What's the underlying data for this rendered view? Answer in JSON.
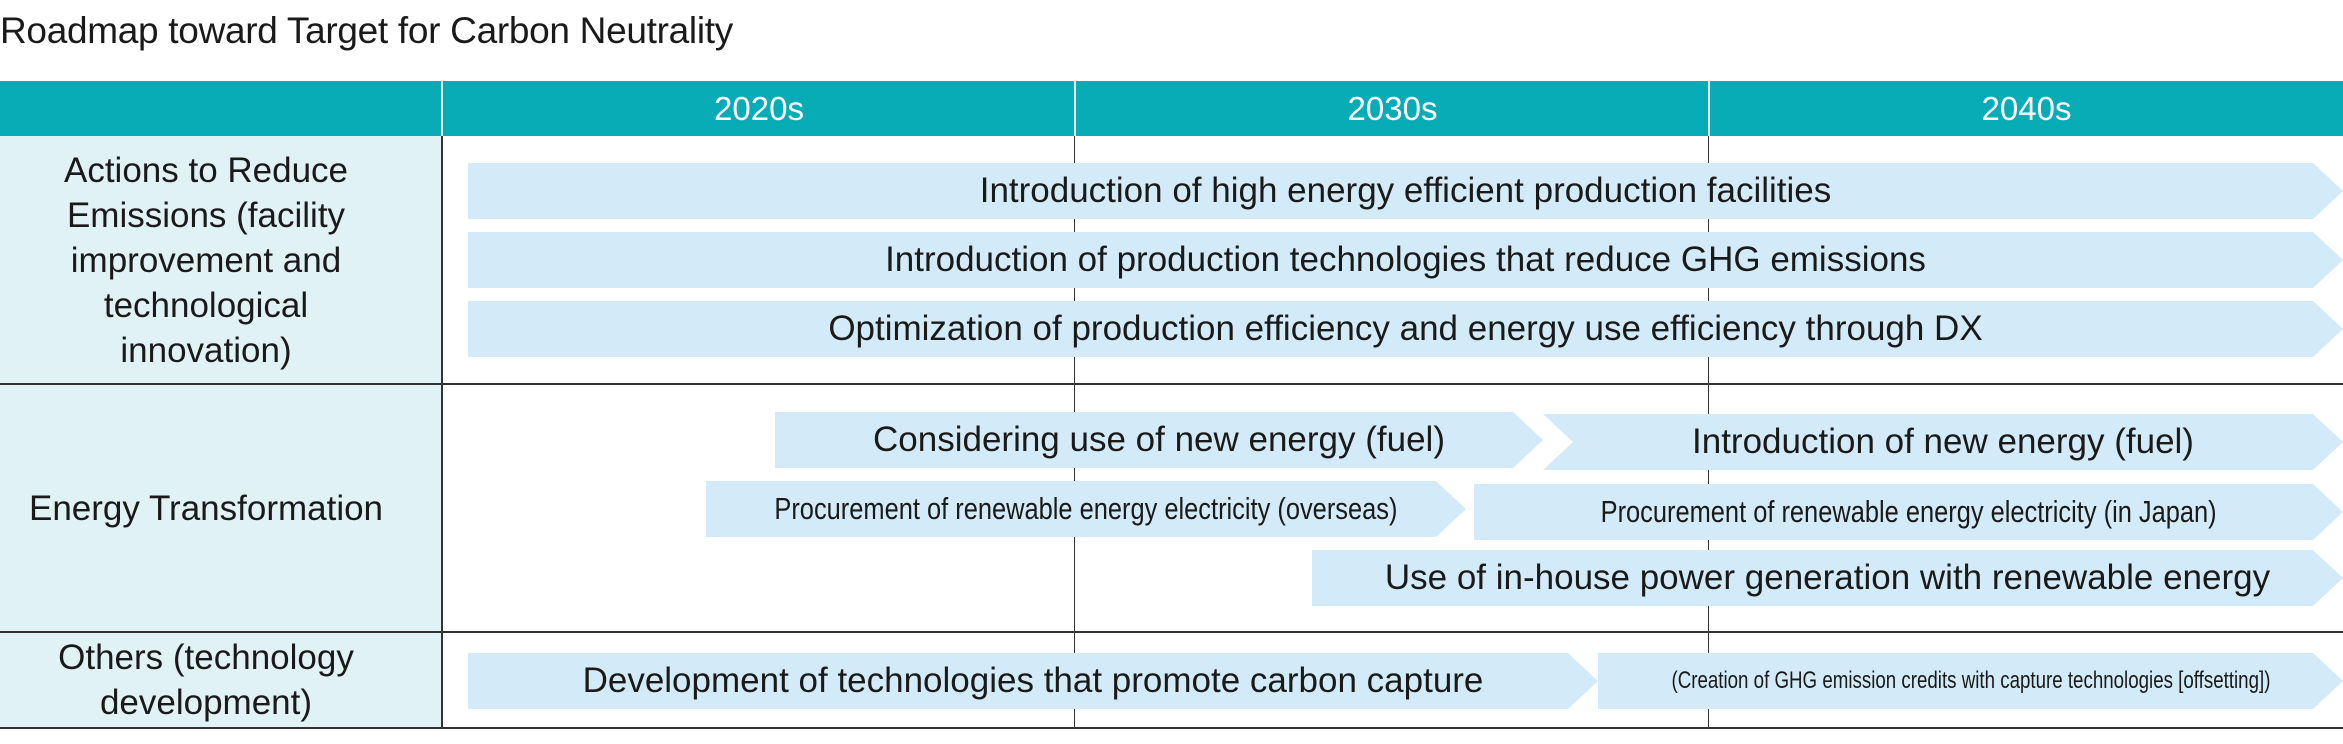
{
  "title": "Roadmap toward Target for Carbon Neutrality",
  "header": {
    "decades": [
      "2020s",
      "2030s",
      "2040s"
    ]
  },
  "rows": {
    "reduce": {
      "label": "Actions to Reduce Emissions (facility improvement and technological innovation)",
      "bars": [
        "Introduction of high energy efficient production facilities",
        "Introduction of production technologies that reduce GHG emissions",
        "Optimization of production efficiency and energy use efficiency through DX"
      ]
    },
    "energy": {
      "label": "Energy Transformation",
      "bars": [
        "Considering use of new energy (fuel)",
        "Introduction of new energy (fuel)",
        "Procurement of renewable energy electricity (overseas)",
        "Procurement of renewable energy electricity (in Japan)",
        "Use of in-house power generation with renewable energy"
      ]
    },
    "others": {
      "label": "Others (technology development)",
      "bars": [
        "Development of technologies that promote carbon capture",
        "(Creation of GHG emission credits with capture technologies [offsetting])"
      ]
    }
  },
  "colors": {
    "header": "#07acb6",
    "label_column": "#e0f2f3",
    "bar": "#d3ebf8"
  }
}
